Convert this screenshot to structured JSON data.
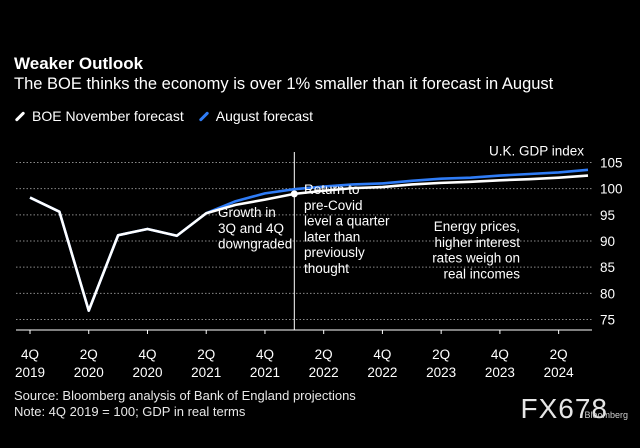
{
  "header": {
    "title": "Weaker Outlook",
    "subtitle": "The BOE thinks the economy is over 1% smaller than it forecast in August"
  },
  "legend": {
    "november_label": "BOE November forecast",
    "august_label": "August forecast"
  },
  "footer": {
    "source": "Source: Bloomberg analysis of Bank of England projections",
    "note": "Note: 4Q 2019 = 100; GDP in real terms"
  },
  "watermark": {
    "text": "FX678",
    "sub": "Bloomberg"
  },
  "colors": {
    "background": "#000000",
    "november": "#ffffff",
    "august": "#2f7cf6",
    "grid": "#8a8a8a"
  },
  "chart_data": {
    "type": "line",
    "title": "Weaker Outlook",
    "ylabel": "U.K. GDP index",
    "ylim": [
      73,
      107
    ],
    "yticks": [
      75,
      80,
      85,
      90,
      95,
      100,
      105
    ],
    "x": [
      "4Q 2019",
      "1Q 2020",
      "2Q 2020",
      "3Q 2020",
      "4Q 2020",
      "1Q 2021",
      "2Q 2021",
      "3Q 2021",
      "4Q 2021",
      "1Q 2022",
      "2Q 2022",
      "3Q 2022",
      "4Q 2022",
      "1Q 2023",
      "2Q 2023",
      "3Q 2023",
      "4Q 2023",
      "1Q 2024",
      "2Q 2024",
      "3Q 2024"
    ],
    "x_tick_labels": [
      {
        "top": "4Q",
        "bottom": "2019"
      },
      {
        "top": "2Q",
        "bottom": "2020"
      },
      {
        "top": "4Q",
        "bottom": "2020"
      },
      {
        "top": "2Q",
        "bottom": "2021"
      },
      {
        "top": "4Q",
        "bottom": "2021"
      },
      {
        "top": "2Q",
        "bottom": "2022"
      },
      {
        "top": "4Q",
        "bottom": "2022"
      },
      {
        "top": "2Q",
        "bottom": "2023"
      },
      {
        "top": "4Q",
        "bottom": "2023"
      },
      {
        "top": "2Q",
        "bottom": "2024"
      }
    ],
    "series": [
      {
        "name": "August forecast",
        "values": [
          98.3,
          95.6,
          76.7,
          91.1,
          92.3,
          91.0,
          95.3,
          97.6,
          99.1,
          99.9,
          100.4,
          100.8,
          101.0,
          101.5,
          101.9,
          102.1,
          102.5,
          102.8,
          103.1,
          103.6
        ]
      },
      {
        "name": "BOE November forecast",
        "values": [
          98.3,
          95.6,
          76.7,
          91.1,
          92.3,
          91.0,
          95.3,
          96.9,
          97.9,
          99.0,
          99.6,
          100.1,
          100.3,
          100.8,
          101.1,
          101.3,
          101.6,
          101.8,
          102.1,
          102.5
        ]
      }
    ],
    "marker_index": 9,
    "annotations": [
      {
        "id": "growth",
        "lines": [
          "Growth in",
          "3Q and 4Q",
          "downgraded"
        ]
      },
      {
        "id": "covid",
        "lines": [
          "Return to",
          "pre-Covid",
          "level a quarter",
          "later than",
          "previously",
          "thought"
        ]
      },
      {
        "id": "energy",
        "lines": [
          "Energy prices,",
          "higher interest",
          "rates weigh on",
          "real incomes"
        ]
      }
    ]
  }
}
